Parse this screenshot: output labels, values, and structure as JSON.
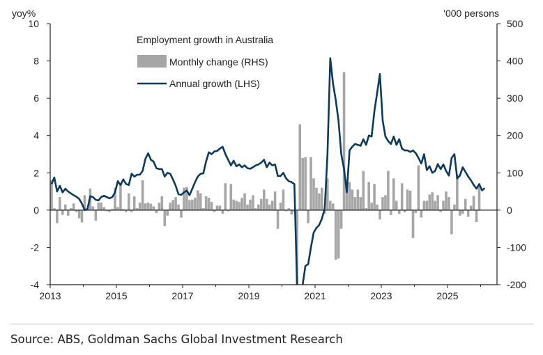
{
  "chart_data": {
    "type": "bar+line",
    "title": "Employment growth in Australia",
    "left_axis_label": "yoy%",
    "right_axis_label": "'000 persons",
    "left_ylim": [
      -4,
      10
    ],
    "right_ylim": [
      -200,
      500
    ],
    "left_ticks": [
      "10",
      "8",
      "6",
      "4",
      "2",
      "0",
      "-2",
      "-4"
    ],
    "right_ticks": [
      "500",
      "400",
      "300",
      "200",
      "100",
      "0",
      "-100",
      "-200"
    ],
    "x_ticks": [
      "2013",
      "2015",
      "2017",
      "2019",
      "2021",
      "2023",
      "2025"
    ],
    "x_start": "2013-01",
    "frequency": "monthly",
    "legend": [
      {
        "name": "Monthly change (RHS)",
        "type": "bar",
        "axis": "right"
      },
      {
        "name": "Annual growth (LHS)",
        "type": "line",
        "axis": "left"
      }
    ],
    "colors": {
      "bar": "#a6a6a6",
      "line": "#0b3a5e"
    },
    "series": [
      {
        "name": "Monthly change (RHS)",
        "values": [
          80,
          5,
          -35,
          35,
          -13,
          15,
          -15,
          5,
          18,
          -5,
          -22,
          -33,
          40,
          5,
          58,
          10,
          -28,
          20,
          20,
          8,
          -3,
          -5,
          3,
          60,
          8,
          70,
          3,
          -5,
          45,
          -5,
          37,
          5,
          20,
          80,
          18,
          20,
          17,
          10,
          -8,
          20,
          37,
          -43,
          -15,
          20,
          27,
          35,
          15,
          -20,
          60,
          62,
          27,
          28,
          33,
          53,
          45,
          5,
          37,
          33,
          22,
          -5,
          12,
          12,
          -10,
          72,
          -3,
          70,
          28,
          25,
          22,
          33,
          45,
          15,
          28,
          40,
          5,
          15,
          30,
          55,
          30,
          15,
          25,
          50,
          -50,
          20,
          55,
          -3,
          5,
          -12,
          -5,
          -210,
          230,
          140,
          142,
          -35,
          142,
          85,
          60,
          45,
          60,
          -10,
          85,
          25,
          18,
          -133,
          -130,
          -50,
          370,
          80,
          75,
          55,
          35,
          55,
          35,
          105,
          5,
          75,
          20,
          70,
          15,
          -25,
          35,
          40,
          105,
          -13,
          85,
          25,
          -10,
          72,
          -6,
          55,
          52,
          -75,
          -8,
          120,
          -20,
          25,
          25,
          42,
          48,
          25,
          40,
          -5,
          25,
          50,
          35,
          -65,
          15,
          95,
          -15,
          -10,
          30,
          -18,
          12,
          38,
          -32,
          65
        ]
      },
      {
        "name": "Annual growth (LHS)",
        "values": [
          1.4,
          1.75,
          1.0,
          1.3,
          0.95,
          1.15,
          1.0,
          0.9,
          0.8,
          0.72,
          0.6,
          0.35,
          0.0,
          0.05,
          0.75,
          0.7,
          0.55,
          0.52,
          0.7,
          0.77,
          0.7,
          0.63,
          0.7,
          0.95,
          1.55,
          1.35,
          1.65,
          1.4,
          1.35,
          1.95,
          1.8,
          1.9,
          1.9,
          2.1,
          2.75,
          3.05,
          2.7,
          2.6,
          2.25,
          2.2,
          2.2,
          1.8,
          2.0,
          1.95,
          1.65,
          1.3,
          0.85,
          0.82,
          0.95,
          1.05,
          0.8,
          1.15,
          1.5,
          1.8,
          1.95,
          1.97,
          2.6,
          3.1,
          3.0,
          3.15,
          3.17,
          3.3,
          3.4,
          3.0,
          2.7,
          2.4,
          2.65,
          2.35,
          2.45,
          2.3,
          2.4,
          2.25,
          2.22,
          2.3,
          2.4,
          2.45,
          2.55,
          2.7,
          2.3,
          2.55,
          2.4,
          2.45,
          1.83,
          1.83,
          2.0,
          1.7,
          1.55,
          1.5,
          1.4,
          -4.2,
          -4.3,
          -4.0,
          -3.0,
          -2.9,
          -2.0,
          -1.2,
          -0.95,
          -0.8,
          -0.45,
          0.1,
          3.0,
          8.15,
          6.8,
          5.9,
          4.8,
          3.0,
          2.2,
          0.96,
          3.2,
          3.4,
          3.55,
          3.5,
          3.45,
          3.8,
          3.5,
          4.0,
          3.95,
          5.3,
          6.3,
          7.3,
          4.8,
          3.95,
          3.7,
          3.55,
          3.95,
          3.5,
          3.8,
          3.3,
          3.2,
          3.2,
          3.12,
          3.2,
          3.05,
          2.8,
          2.5,
          3.0,
          2.15,
          2.35,
          2.0,
          2.1,
          2.47,
          2.2,
          2.45,
          2.1,
          1.85,
          2.8,
          3.0,
          1.7,
          1.85,
          2.3,
          2.05,
          1.8,
          1.6,
          1.35,
          1.15,
          1.4,
          1.06,
          1.18
        ]
      }
    ]
  },
  "source": "Source: ABS, Goldman Sachs Global Investment Research"
}
